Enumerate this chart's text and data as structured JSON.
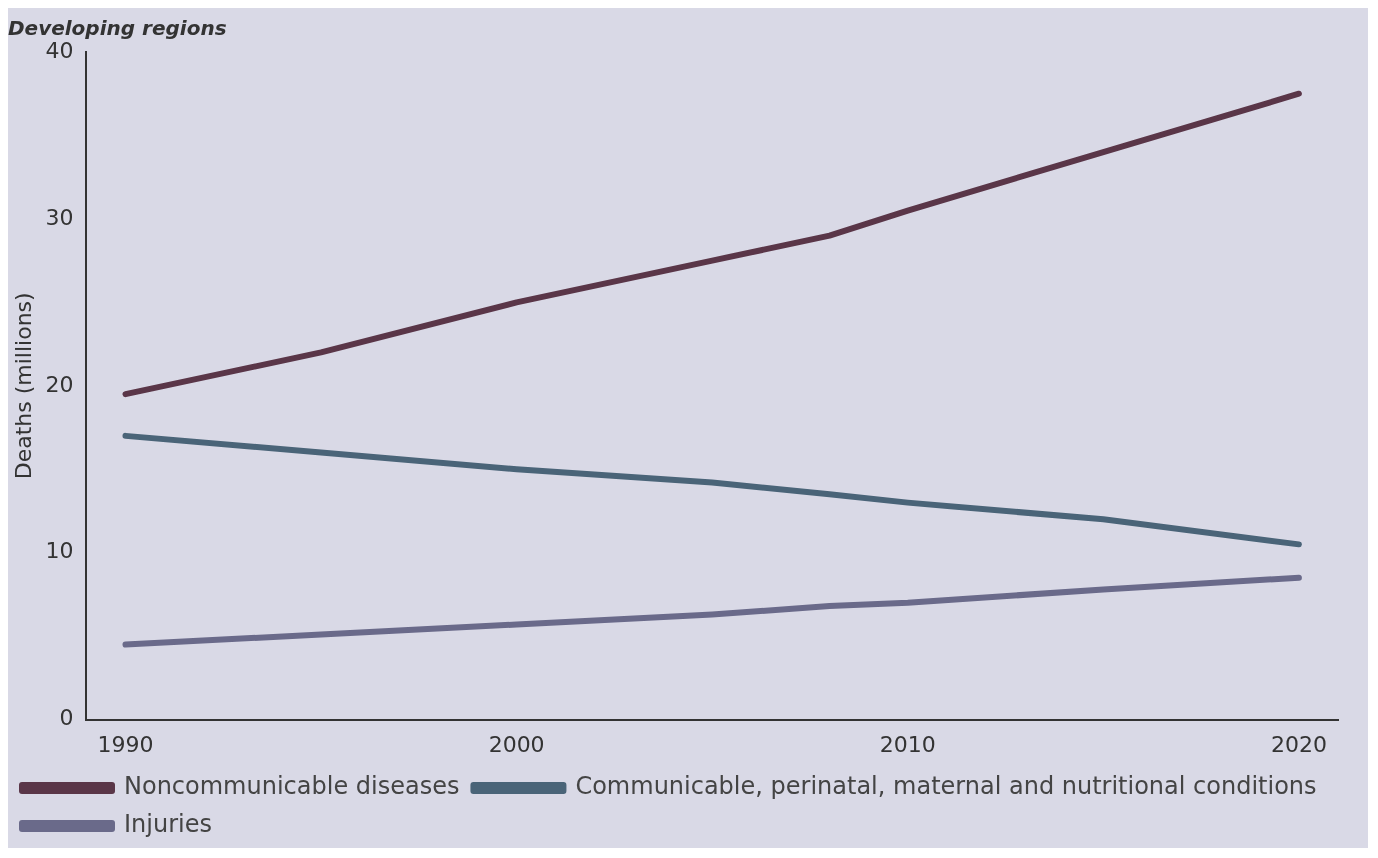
{
  "chart_data": {
    "type": "line",
    "title": "Developing regions",
    "ylabel": "Deaths (millions)",
    "x": [
      1990,
      1995,
      2000,
      2005,
      2008,
      2010,
      2015,
      2020
    ],
    "series": [
      {
        "name": "Noncommunicable diseases",
        "color": "#5a3648",
        "values": [
          19.5,
          22,
          25,
          27.5,
          29,
          30.5,
          34,
          37.5
        ]
      },
      {
        "name": "Communicable, perinatal, maternal and nutritional conditions",
        "color": "#4a6478",
        "values": [
          17,
          16,
          15,
          14.2,
          13.5,
          13,
          12,
          10.5
        ]
      },
      {
        "name": "Injuries",
        "color": "#6a6a8a",
        "values": [
          4.5,
          5.1,
          5.7,
          6.3,
          6.8,
          7,
          7.8,
          8.5
        ]
      }
    ],
    "xlim": [
      1989,
      2021
    ],
    "xticks": [
      1990,
      2000,
      2010,
      2020
    ],
    "ylim": [
      0,
      40
    ],
    "yticks": [
      0,
      10,
      20,
      30,
      40
    ],
    "grid": false,
    "legend": "bottom",
    "marker": "none",
    "line_style": "solid"
  }
}
